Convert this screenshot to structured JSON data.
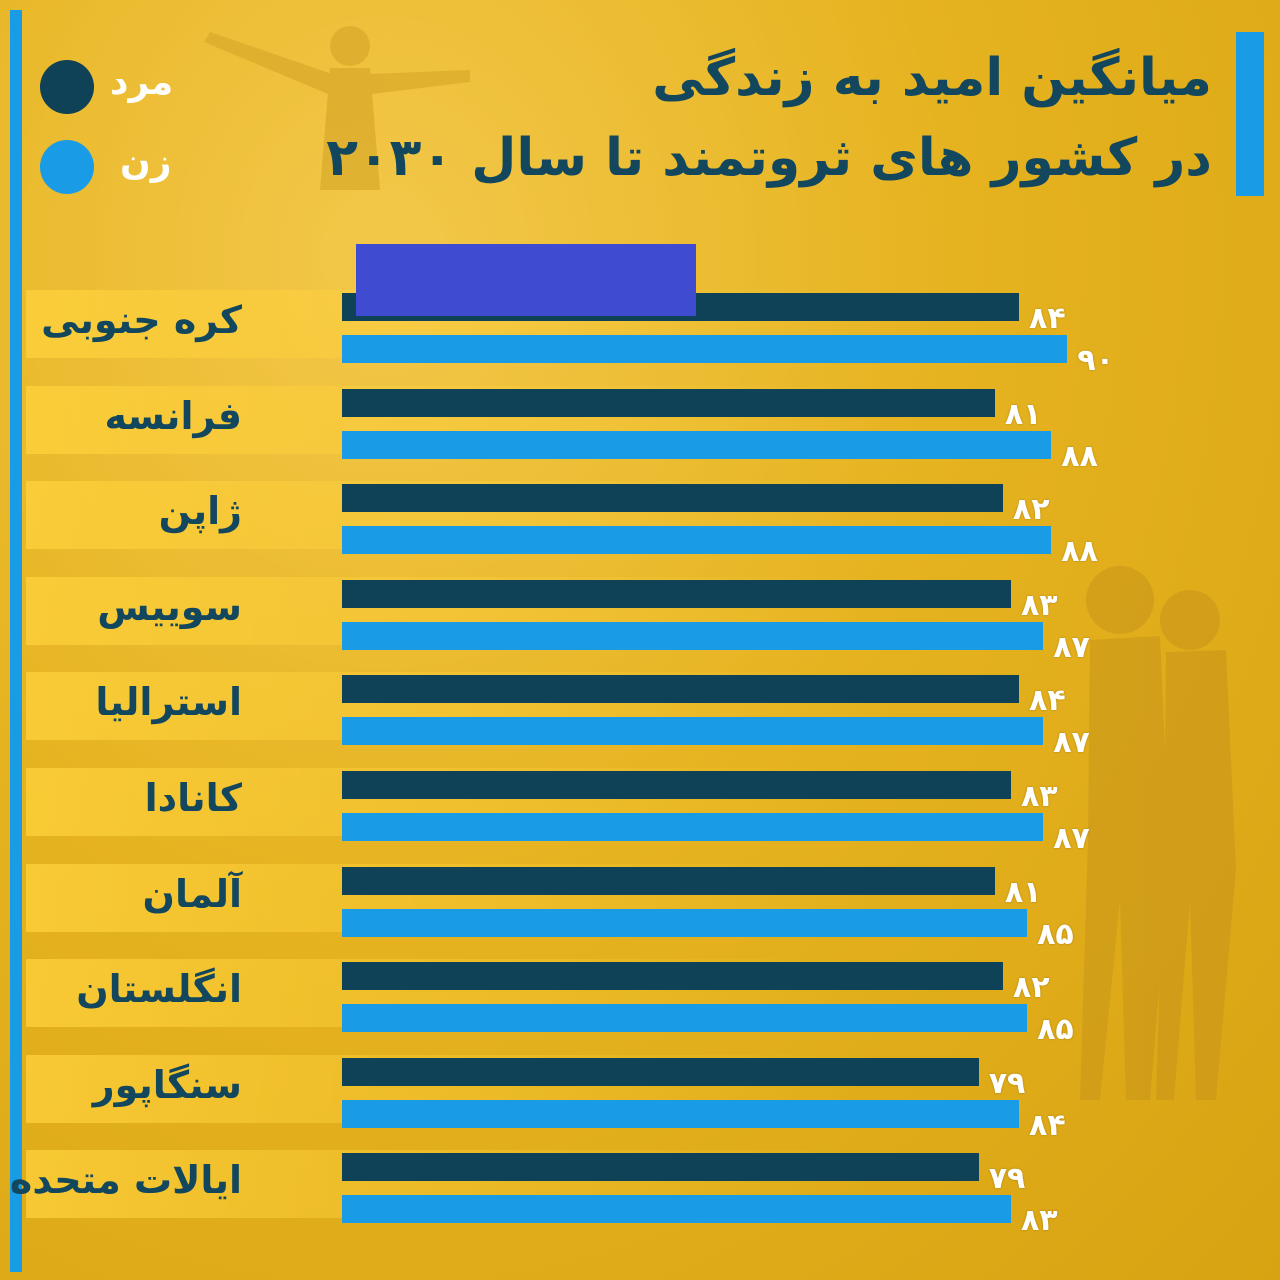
{
  "colors": {
    "male": "#0f4157",
    "female": "#1a9be6",
    "background": "#e6b320",
    "title": "#13475e",
    "accent": "#1a9be6",
    "redaction": "#3f4bd0"
  },
  "title": {
    "line1": "میانگین امید به زندگی",
    "line2": "در کشور های ثروتمند تا سال ۲۰۳۰"
  },
  "legend": [
    {
      "label": "مرد",
      "color": "#0f4157"
    },
    {
      "label": "زن",
      "color": "#1a9be6"
    }
  ],
  "chart_data": {
    "type": "bar",
    "orientation": "horizontal",
    "categories": [
      "کره جنوبی",
      "فرانسه",
      "ژاپن",
      "سوییس",
      "استرالیا",
      "کانادا",
      "آلمان",
      "انگلستان",
      "سنگاپور",
      "ایالات متحده"
    ],
    "series": [
      {
        "name": "مرد",
        "values": [
          84,
          81,
          82,
          83,
          84,
          83,
          81,
          82,
          79,
          79
        ],
        "labels": [
          "۸۴",
          "۸۱",
          "۸۲",
          "۸۳",
          "۸۴",
          "۸۳",
          "۸۱",
          "۸۲",
          "۷۹",
          "۷۹"
        ]
      },
      {
        "name": "زن",
        "values": [
          90,
          88,
          88,
          87,
          87,
          87,
          85,
          85,
          84,
          83
        ],
        "labels": [
          "۹۰",
          "۸۸",
          "۸۸",
          "۸۷",
          "۸۷",
          "۸۷",
          "۸۵",
          "۸۵",
          "۸۴",
          "۸۳"
        ]
      }
    ]
  }
}
